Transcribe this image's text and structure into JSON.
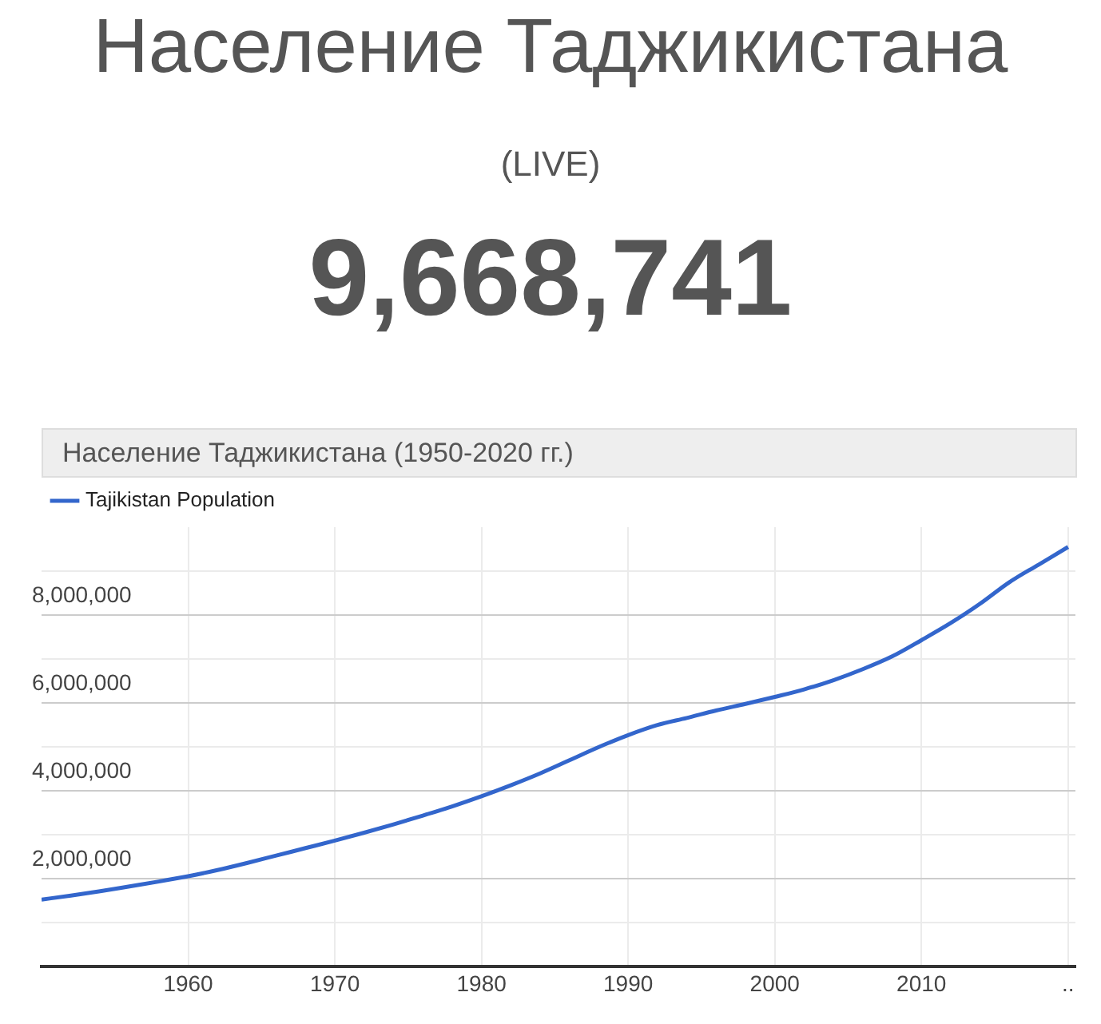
{
  "chart_data": {
    "type": "line",
    "title": "Население Таджикистана",
    "subtitle": "(LIVE)",
    "annotations": [
      "9,668,741",
      "Население Таджикистана (1950-2020 гг.)"
    ],
    "x": [
      1950,
      1952,
      1954,
      1956,
      1958,
      1960,
      1962,
      1964,
      1966,
      1968,
      1970,
      1972,
      1974,
      1976,
      1978,
      1980,
      1982,
      1984,
      1986,
      1988,
      1990,
      1992,
      1994,
      1996,
      1998,
      2000,
      2002,
      2004,
      2006,
      2008,
      2010,
      2012,
      2014,
      2016,
      2018,
      2020
    ],
    "series": [
      {
        "name": "Tajikistan Population",
        "color": "#3366cc",
        "values": [
          1530000,
          1620000,
          1720000,
          1830000,
          1940000,
          2060000,
          2200000,
          2360000,
          2530000,
          2700000,
          2870000,
          3050000,
          3240000,
          3440000,
          3650000,
          3880000,
          4130000,
          4400000,
          4700000,
          5000000,
          5270000,
          5500000,
          5660000,
          5830000,
          5980000,
          6140000,
          6310000,
          6520000,
          6770000,
          7060000,
          7430000,
          7820000,
          8260000,
          8750000,
          9150000,
          9550000
        ]
      }
    ],
    "xlim": [
      1950,
      2020.5
    ],
    "xticks": [
      1960,
      1970,
      1980,
      1990,
      2000,
      2010,
      {
        "value": 2020,
        "label": ".."
      }
    ],
    "ylim": [
      0,
      10000000
    ],
    "yticks": [
      {
        "value": 1000000,
        "label": null
      },
      {
        "value": 2000000,
        "label": "2,000,000"
      },
      {
        "value": 3000000,
        "label": null
      },
      {
        "value": 4000000,
        "label": "4,000,000"
      },
      {
        "value": 5000000,
        "label": null
      },
      {
        "value": 6000000,
        "label": "6,000,000"
      },
      {
        "value": 7000000,
        "label": null
      },
      {
        "value": 8000000,
        "label": "8,000,000"
      },
      {
        "value": 9000000,
        "label": null
      }
    ],
    "grid": true,
    "legend": "top left",
    "marker": "none",
    "line_style": "solid"
  }
}
